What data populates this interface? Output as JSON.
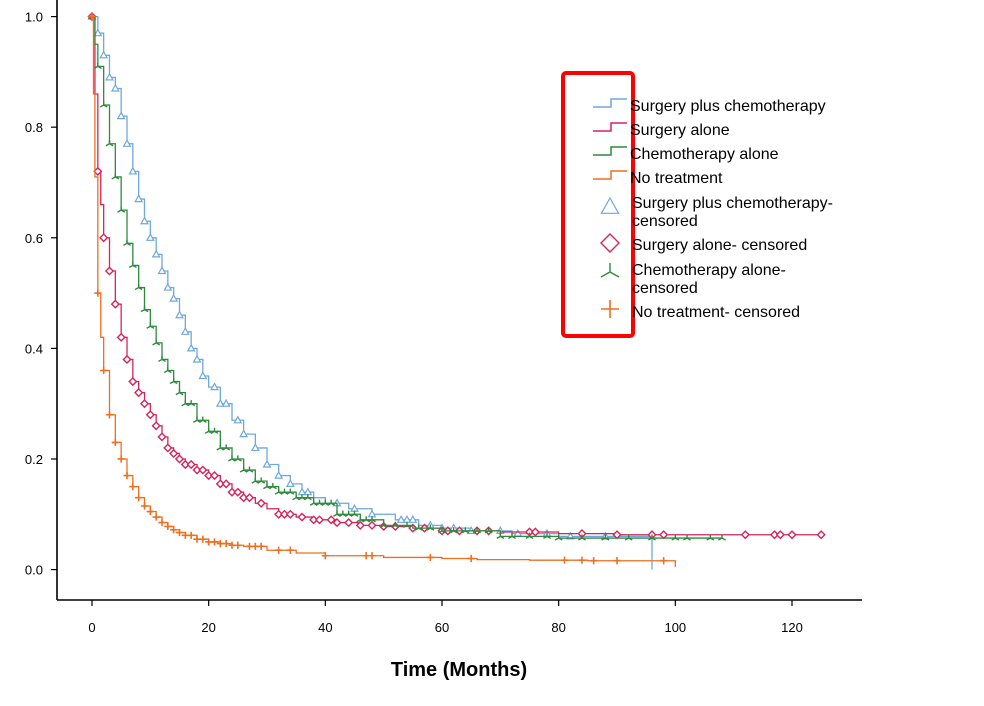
{
  "chart_data": {
    "type": "line",
    "title": "",
    "xlabel": "Time (Months)",
    "ylabel": "",
    "xlim": [
      -6,
      132
    ],
    "ylim": [
      -0.055,
      1.03
    ],
    "xticks": [
      0,
      20,
      40,
      60,
      80,
      100,
      120
    ],
    "yticks": [
      0.0,
      0.2,
      0.4,
      0.6,
      0.8,
      1.0
    ],
    "xtick_labels": [
      "0",
      "20",
      "40",
      "60",
      "80",
      "100",
      "120"
    ],
    "ytick_labels": [
      "0.0",
      "0.2",
      "0.4",
      "0.6",
      "0.8",
      "1.0"
    ],
    "legend_position": "top-right",
    "highlight_box_color": "#ff0000",
    "series": [
      {
        "name": "Surgery plus chemotherapy",
        "censored_name": "Surgery plus chemotherapy- censored",
        "censored_lines": [
          "Surgery plus chemotherapy-",
          "censored"
        ],
        "color": "#6fa8dc",
        "marker": "triangle",
        "x": [
          0,
          1,
          2,
          3,
          4,
          5,
          6,
          7,
          8,
          9,
          10,
          11,
          12,
          13,
          14,
          15,
          16,
          17,
          18,
          19,
          20,
          22,
          24,
          26,
          28,
          30,
          32,
          34,
          36,
          38,
          40,
          44,
          48,
          52,
          56,
          60,
          65,
          72,
          80,
          90,
          96
        ],
        "y": [
          1.0,
          0.97,
          0.93,
          0.89,
          0.87,
          0.82,
          0.77,
          0.72,
          0.67,
          0.63,
          0.6,
          0.57,
          0.54,
          0.51,
          0.49,
          0.46,
          0.43,
          0.4,
          0.38,
          0.35,
          0.33,
          0.3,
          0.27,
          0.245,
          0.22,
          0.19,
          0.17,
          0.155,
          0.14,
          0.13,
          0.12,
          0.11,
          0.1,
          0.09,
          0.08,
          0.075,
          0.07,
          0.065,
          0.06,
          0.06,
          0.0
        ],
        "censored_x": [
          0,
          1,
          2,
          3,
          4,
          5,
          6,
          7,
          8,
          9,
          10,
          11,
          12,
          13,
          14,
          15,
          16,
          17,
          18,
          19,
          21,
          22,
          23,
          25,
          26,
          28,
          30,
          32,
          34,
          36,
          37,
          42,
          45,
          48,
          53,
          54,
          55,
          58,
          60,
          62,
          65,
          70,
          73,
          78,
          82,
          88
        ]
      },
      {
        "name": "Surgery alone",
        "censored_name": "Surgery alone- censored",
        "censored_lines": [
          "Surgery alone- censored"
        ],
        "color": "#d6245a",
        "marker": "diamond",
        "x": [
          0,
          0.5,
          1,
          1.5,
          2,
          3,
          4,
          5,
          6,
          7,
          8,
          9,
          10,
          11,
          12,
          13,
          14,
          15,
          16,
          18,
          20,
          22,
          24,
          26,
          28,
          30,
          32,
          35,
          38,
          42,
          46,
          50,
          55,
          60,
          70,
          80,
          90,
          125
        ],
        "y": [
          1.0,
          0.86,
          0.72,
          0.66,
          0.6,
          0.54,
          0.48,
          0.42,
          0.38,
          0.34,
          0.32,
          0.3,
          0.28,
          0.26,
          0.24,
          0.22,
          0.21,
          0.2,
          0.19,
          0.18,
          0.17,
          0.155,
          0.14,
          0.13,
          0.12,
          0.11,
          0.1,
          0.095,
          0.09,
          0.085,
          0.08,
          0.078,
          0.075,
          0.07,
          0.068,
          0.065,
          0.063,
          0.063
        ],
        "censored_x": [
          0,
          1,
          2,
          3,
          4,
          5,
          6,
          7,
          8,
          9,
          10,
          11,
          12,
          13,
          14,
          15,
          16,
          17,
          18,
          19,
          20,
          21,
          22,
          23,
          24,
          25,
          26,
          27,
          29,
          32,
          33,
          34,
          36,
          38,
          39,
          41,
          42,
          44,
          46,
          48,
          50,
          52,
          55,
          57,
          60,
          61,
          63,
          66,
          68,
          75,
          76,
          84,
          90,
          96,
          98,
          112,
          117,
          118,
          120,
          125
        ]
      },
      {
        "name": "Chemotherapy alone",
        "censored_name": "Chemotherapy alone- censored",
        "censored_lines": [
          "Chemotherapy alone-",
          "censored"
        ],
        "color": "#2e8b3e",
        "marker": "fork",
        "x": [
          0,
          0.5,
          1,
          2,
          3,
          4,
          5,
          6,
          7,
          8,
          9,
          10,
          11,
          12,
          13,
          14,
          15,
          16,
          18,
          20,
          22,
          24,
          26,
          28,
          30,
          32,
          35,
          38,
          42,
          46,
          50,
          55,
          60,
          70,
          80,
          90,
          108
        ],
        "y": [
          1.0,
          0.95,
          0.91,
          0.84,
          0.77,
          0.71,
          0.65,
          0.59,
          0.55,
          0.51,
          0.47,
          0.44,
          0.41,
          0.38,
          0.36,
          0.34,
          0.32,
          0.3,
          0.27,
          0.25,
          0.22,
          0.2,
          0.18,
          0.16,
          0.15,
          0.14,
          0.13,
          0.12,
          0.1,
          0.09,
          0.08,
          0.075,
          0.07,
          0.06,
          0.057,
          0.057,
          0.057
        ],
        "censored_x": [
          0,
          1,
          2,
          3,
          4,
          5,
          6,
          7,
          8,
          9,
          10,
          11,
          12,
          13,
          14,
          15,
          16,
          17,
          18,
          19,
          20,
          21,
          22,
          23,
          24,
          25,
          26,
          27,
          28,
          29,
          30,
          31,
          32,
          33,
          34,
          35,
          36,
          37,
          38,
          39,
          40,
          41,
          42,
          43,
          44,
          45,
          46,
          47,
          48,
          50,
          52,
          54,
          56,
          58,
          60,
          62,
          64,
          66,
          68,
          70,
          72,
          75,
          78,
          80,
          84,
          88,
          92,
          96,
          100,
          102,
          106,
          108
        ]
      },
      {
        "name": "No treatment",
        "censored_name": "No treatment- censored",
        "censored_lines": [
          "No treatment- censored"
        ],
        "color": "#ef6f1f",
        "marker": "plus",
        "x": [
          0,
          0.25,
          0.5,
          1,
          1.5,
          2,
          3,
          4,
          5,
          6,
          7,
          8,
          9,
          10,
          11,
          12,
          13,
          14,
          15,
          16,
          18,
          20,
          22,
          24,
          26,
          30,
          35,
          40,
          50,
          60,
          66,
          75,
          85,
          100
        ],
        "y": [
          1.0,
          0.86,
          0.71,
          0.5,
          0.42,
          0.36,
          0.28,
          0.23,
          0.2,
          0.17,
          0.15,
          0.13,
          0.115,
          0.105,
          0.095,
          0.085,
          0.078,
          0.072,
          0.067,
          0.062,
          0.055,
          0.05,
          0.047,
          0.044,
          0.042,
          0.035,
          0.03,
          0.025,
          0.022,
          0.02,
          0.018,
          0.017,
          0.016,
          0.005
        ],
        "censored_x": [
          0,
          1,
          2,
          3,
          4,
          5,
          6,
          7,
          8,
          9,
          10,
          11,
          12,
          13,
          14,
          15,
          16,
          17,
          18,
          19,
          20,
          21,
          22,
          23,
          24,
          25,
          27,
          28,
          29,
          32,
          34,
          40,
          47,
          48,
          58,
          65,
          81,
          84,
          86,
          90,
          98
        ]
      }
    ]
  }
}
